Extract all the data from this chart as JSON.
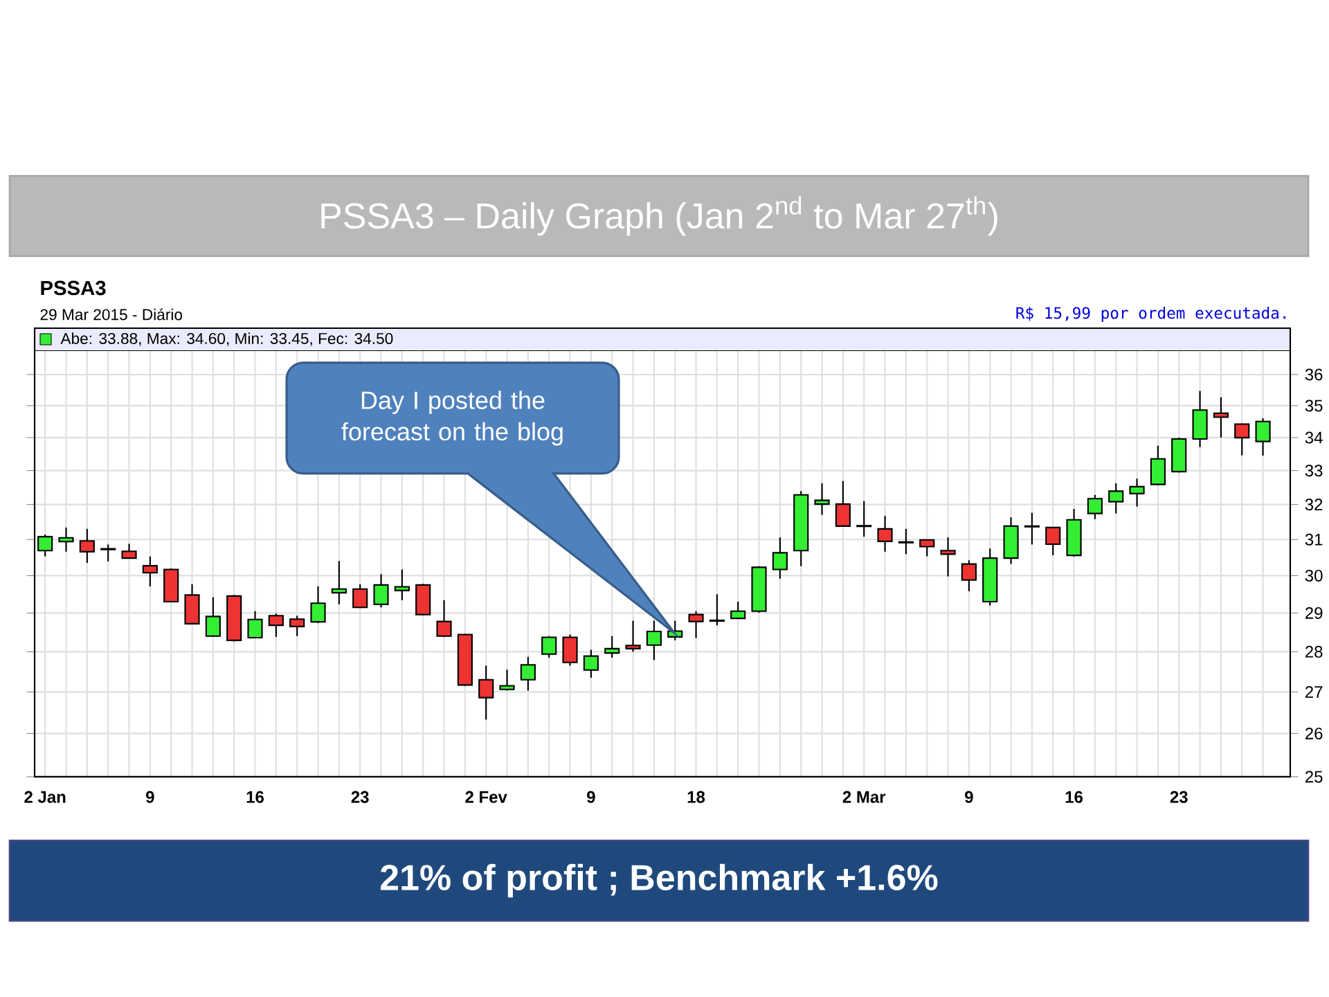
{
  "chart_data": {
    "type": "candlestick",
    "title": "PSSA3 – Daily Graph (Jan 2$^{nd}$ to Mar 27$^{th}$)",
    "subtitle": "PSSA3",
    "categories": [
      "2 Jan",
      null,
      null,
      null,
      null,
      "9",
      null,
      null,
      null,
      null,
      "16",
      null,
      null,
      null,
      null,
      "23",
      null,
      null,
      null,
      null,
      null,
      "2 Fev",
      null,
      null,
      null,
      null,
      "9",
      null,
      null,
      null,
      null,
      "18",
      null,
      null,
      null,
      null,
      null,
      null,
      null,
      "2 Mar",
      null,
      null,
      null,
      null,
      "9",
      null,
      null,
      null,
      null,
      "16",
      null,
      null,
      null,
      null,
      "23",
      null,
      null,
      null,
      null
    ],
    "ohlc": [
      [
        30.69,
        31.14,
        30.53,
        31.08
      ],
      [
        30.94,
        31.34,
        30.66,
        31.05
      ],
      [
        30.96,
        31.3,
        30.35,
        30.66
      ],
      [
        30.74,
        30.86,
        30.39,
        30.72
      ],
      [
        30.67,
        30.88,
        30.48,
        30.48
      ],
      [
        30.27,
        30.53,
        29.71,
        30.08
      ],
      [
        30.17,
        30.2,
        29.28,
        29.3
      ],
      [
        29.48,
        29.77,
        28.7,
        28.72
      ],
      [
        28.4,
        29.42,
        28.38,
        28.91
      ],
      [
        29.45,
        29.48,
        28.26,
        28.29
      ],
      [
        28.36,
        29.05,
        28.34,
        28.83
      ],
      [
        28.93,
        28.99,
        28.38,
        28.68
      ],
      [
        28.84,
        28.93,
        28.4,
        28.65
      ],
      [
        28.77,
        29.71,
        28.74,
        29.26
      ],
      [
        29.54,
        30.4,
        29.23,
        29.64
      ],
      [
        29.64,
        29.77,
        29.13,
        29.15
      ],
      [
        29.23,
        30.04,
        29.15,
        29.75
      ],
      [
        29.6,
        30.17,
        29.34,
        29.7
      ],
      [
        29.75,
        29.78,
        28.94,
        28.96
      ],
      [
        28.78,
        29.34,
        28.38,
        28.4
      ],
      [
        28.44,
        28.46,
        27.15,
        27.17
      ],
      [
        27.3,
        27.65,
        26.33,
        26.86
      ],
      [
        27.06,
        27.55,
        27.03,
        27.15
      ],
      [
        27.3,
        27.87,
        27.03,
        27.67
      ],
      [
        27.94,
        28.4,
        27.85,
        28.37
      ],
      [
        28.37,
        28.44,
        27.65,
        27.73
      ],
      [
        27.54,
        28.05,
        27.35,
        27.89
      ],
      [
        27.97,
        28.4,
        27.85,
        28.08
      ],
      [
        28.16,
        28.8,
        28.0,
        28.08
      ],
      [
        28.17,
        28.8,
        27.79,
        28.52
      ],
      [
        28.38,
        28.8,
        28.29,
        28.53
      ],
      [
        28.96,
        29.05,
        28.35,
        28.78
      ],
      [
        28.81,
        29.5,
        28.68,
        28.79
      ],
      [
        28.86,
        29.3,
        28.86,
        29.05
      ],
      [
        29.05,
        30.26,
        29.01,
        30.23
      ],
      [
        30.17,
        31.06,
        29.92,
        30.63
      ],
      [
        30.69,
        32.39,
        30.26,
        32.28
      ],
      [
        32.01,
        32.62,
        31.7,
        32.12
      ],
      [
        32.01,
        32.69,
        31.38,
        31.38
      ],
      [
        31.39,
        32.1,
        31.08,
        31.37
      ],
      [
        31.3,
        31.67,
        30.66,
        30.95
      ],
      [
        30.93,
        31.3,
        30.59,
        30.91
      ],
      [
        30.99,
        30.99,
        30.53,
        30.8
      ],
      [
        30.69,
        31.06,
        29.98,
        30.59
      ],
      [
        30.32,
        30.42,
        29.58,
        29.88
      ],
      [
        29.3,
        30.75,
        29.2,
        30.48
      ],
      [
        30.48,
        31.63,
        30.32,
        31.38
      ],
      [
        31.38,
        31.76,
        30.86,
        31.36
      ],
      [
        31.34,
        31.34,
        30.56,
        30.87
      ],
      [
        30.56,
        31.87,
        30.52,
        31.56
      ],
      [
        31.74,
        32.28,
        31.58,
        32.17
      ],
      [
        32.08,
        32.62,
        31.74,
        32.39
      ],
      [
        32.32,
        32.76,
        31.94,
        32.52
      ],
      [
        32.59,
        33.75,
        32.56,
        33.35
      ],
      [
        32.97,
        34.0,
        32.94,
        33.96
      ],
      [
        33.96,
        35.47,
        33.71,
        34.86
      ],
      [
        34.76,
        35.27,
        34.0,
        34.64
      ],
      [
        34.42,
        34.42,
        33.46,
        34.0
      ],
      [
        33.88,
        34.6,
        33.45,
        34.5
      ]
    ],
    "colors": [
      "#33ee33",
      "#33ee33",
      "#ee3333",
      "#ee3333",
      "#ee3333",
      "#ee3333",
      "#ee3333",
      "#ee3333",
      "#33ee33",
      "#ee3333",
      "#33ee33",
      "#ee3333",
      "#ee3333",
      "#33ee33",
      "#33ee33",
      "#ee3333",
      "#33ee33",
      "#33ee33",
      "#ee3333",
      "#ee3333",
      "#ee3333",
      "#ee3333",
      "#33ee33",
      "#33ee33",
      "#33ee33",
      "#ee3333",
      "#33ee33",
      "#33ee33",
      "#ee3333",
      "#33ee33",
      "#33ee33",
      "#ee3333",
      "#ee3333",
      "#33ee33",
      "#33ee33",
      "#33ee33",
      "#33ee33",
      "#33ee33",
      "#ee3333",
      "#ee3333",
      "#ee3333",
      "#ee3333",
      "#ee3333",
      "#ee3333",
      "#ee3333",
      "#33ee33",
      "#33ee33",
      "#ee3333",
      "#ee3333",
      "#33ee33",
      "#33ee33",
      "#33ee33",
      "#33ee33",
      "#33ee33",
      "#33ee33",
      "#33ee33",
      "#ee3333",
      "#ee3333",
      "#33ee33"
    ],
    "ylim": [
      25,
      36.8
    ],
    "yticks": [
      25,
      26,
      27,
      28,
      29,
      30,
      31,
      32,
      33,
      34,
      35,
      36
    ],
    "log": true,
    "grid": true,
    "annotations": [
      "29 Mar 2015 - Diário",
      "Abe: 33.88, Max: 34.60, Min: 33.45, Fec: 34.50",
      "R$ 15,99 por ordem executada.",
      "Day I posted the forecast on the blog",
      "21% of profit ; Benchmark +1.6%"
    ]
  }
}
